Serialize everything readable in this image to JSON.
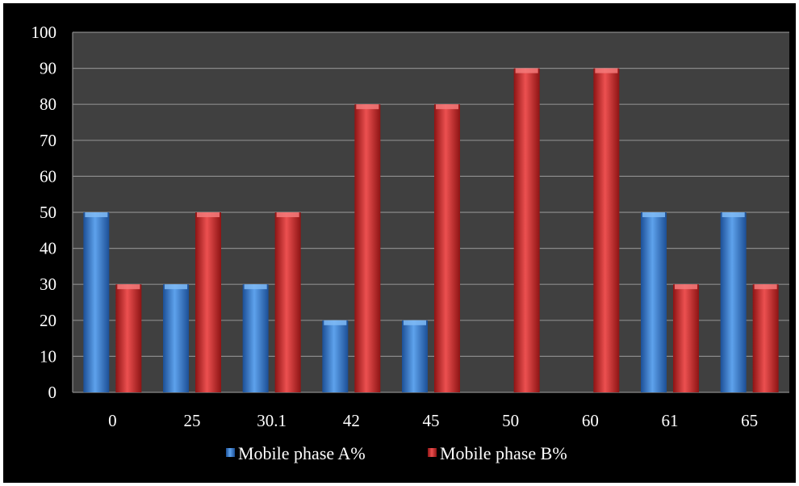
{
  "chart_data": {
    "type": "bar",
    "title": "",
    "xlabel": "",
    "ylabel": "",
    "categories": [
      "0",
      "25",
      "30.1",
      "42",
      "45",
      "50",
      "60",
      "61",
      "65"
    ],
    "series": [
      {
        "name": "Mobile phase A%",
        "color": "#3b82d6",
        "values": [
          50,
          30,
          30,
          20,
          20,
          0,
          0,
          50,
          50
        ]
      },
      {
        "name": "Mobile phase B%",
        "color": "#d93a3a",
        "values": [
          30,
          50,
          50,
          80,
          80,
          90,
          90,
          30,
          30
        ]
      }
    ],
    "ylim": [
      0,
      100
    ],
    "yticks": [
      "0",
      "10",
      "20",
      "30",
      "40",
      "50",
      "60",
      "70",
      "80",
      "90",
      "100"
    ],
    "grid": true,
    "legend_position": "bottom",
    "background": "#000000",
    "plot_background": "#404040"
  }
}
